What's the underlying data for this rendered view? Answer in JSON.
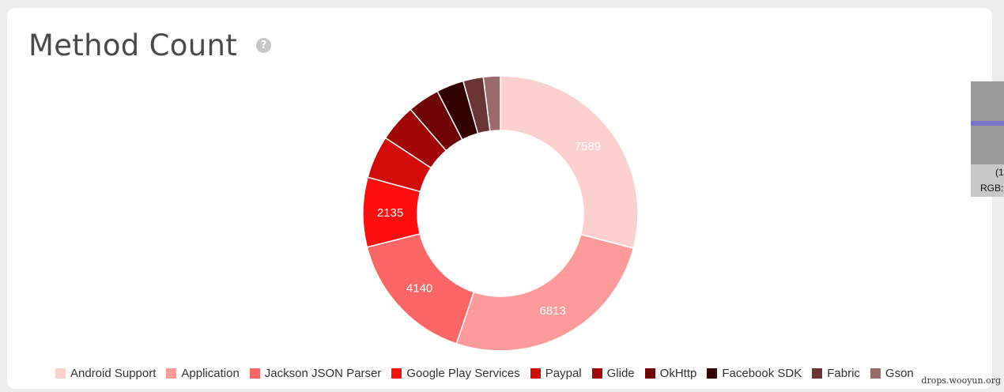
{
  "header": {
    "title": "Method Count",
    "help_icon": "question-circle-icon"
  },
  "chart_data": {
    "type": "pie",
    "variant": "donut",
    "title": "",
    "series": [
      {
        "name": "Android Support",
        "value": 7589,
        "color": "#fdd0d0",
        "label": "7589"
      },
      {
        "name": "Application",
        "value": 6813,
        "color": "#fd9b9b",
        "label": "6813"
      },
      {
        "name": "Jackson JSON Parser",
        "value": 4140,
        "color": "#fd6666",
        "label": "4140"
      },
      {
        "name": "Google Play Services",
        "value": 2135,
        "color": "#fb0f0f",
        "label": "2135"
      },
      {
        "name": "Paypal",
        "value": 1310,
        "color": "#d20a0a",
        "label": ""
      },
      {
        "name": "Glide",
        "value": 1150,
        "color": "#a10505",
        "label": ""
      },
      {
        "name": "OkHttp",
        "value": 980,
        "color": "#6f0303",
        "label": ""
      },
      {
        "name": "Facebook SDK",
        "value": 840,
        "color": "#330000",
        "label": ""
      },
      {
        "name": "Fabric",
        "value": 620,
        "color": "#6a3434",
        "label": ""
      },
      {
        "name": "Gson",
        "value": 520,
        "color": "#9b6a6a",
        "label": ""
      }
    ],
    "legend_position": "bottom"
  },
  "side_panel": {
    "line1": "(1",
    "line2": "RGB:"
  },
  "watermark": "drops.wooyun.org"
}
